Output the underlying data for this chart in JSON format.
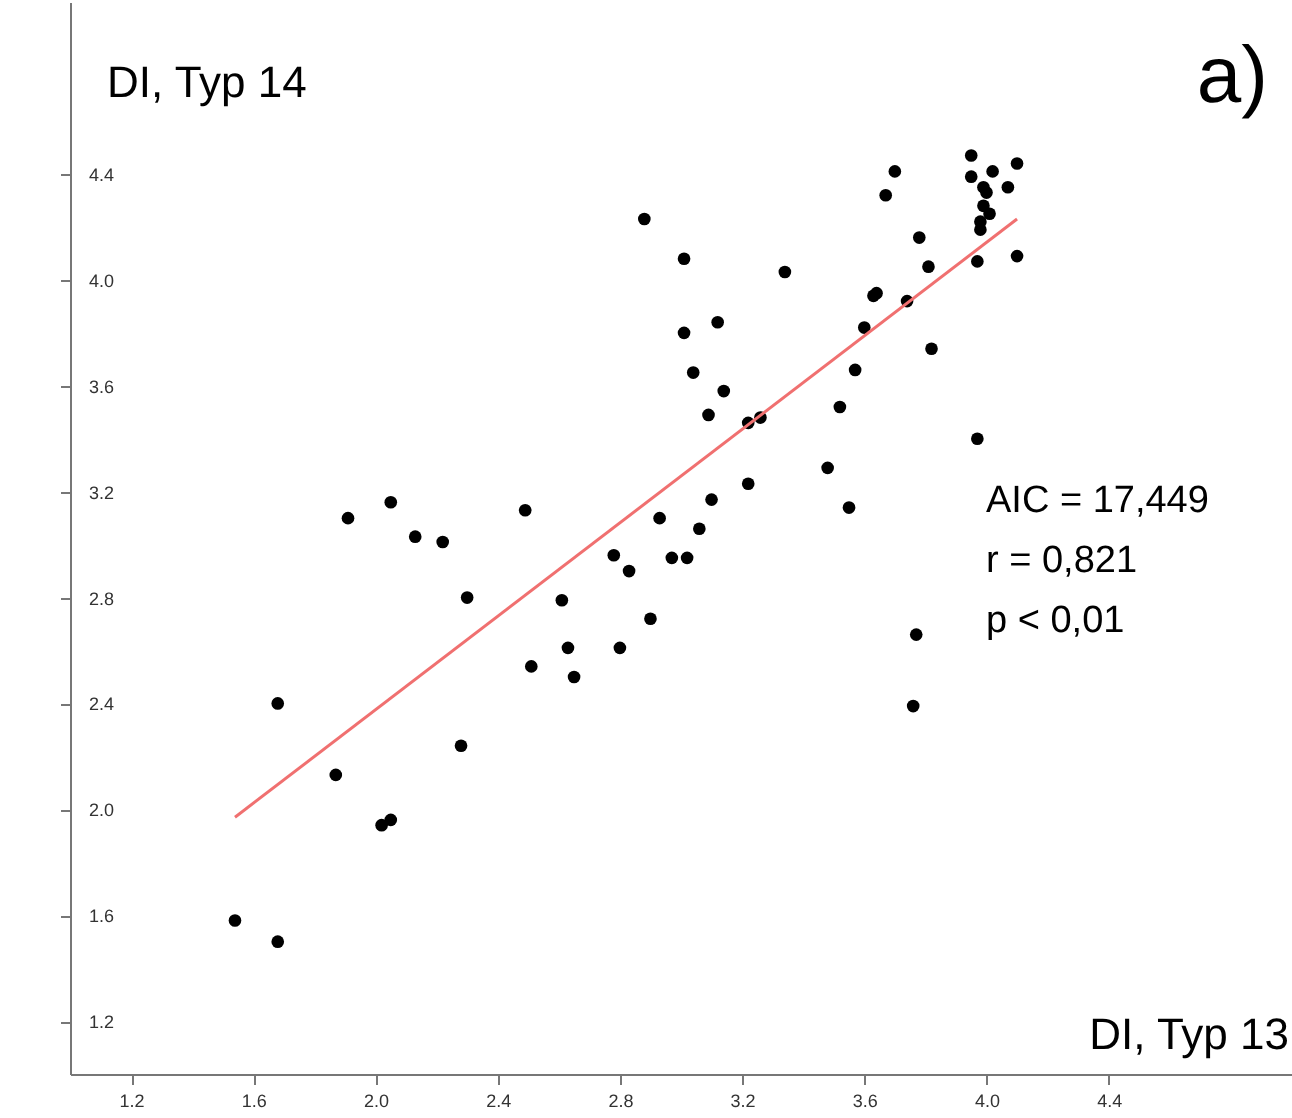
{
  "chart_data": {
    "type": "scatter",
    "xlabel": "DI, Typ 13",
    "ylabel": "DI, Typ 14",
    "annotations": [
      "a)",
      "AIC = 17,449",
      "r =  0,821",
      "p < 0,01"
    ],
    "xlim": [
      1.0,
      5.0
    ],
    "ylim": [
      1.0,
      5.05
    ],
    "xticks": [
      1.2,
      1.6,
      {
        "value": 2,
        "label": "2.0"
      },
      2.4,
      2.8,
      3.2,
      3.6,
      {
        "value": 4,
        "label": "4.0"
      },
      4.4
    ],
    "yticks": [
      1.2,
      1.6,
      {
        "value": 2,
        "label": "2.0"
      },
      2.4,
      2.8,
      3.2,
      3.6,
      {
        "value": 4,
        "label": "4.0"
      },
      4.4
    ],
    "grid": false,
    "series": [
      {
        "marker": "circle",
        "color": "#000000",
        "x": [
          1.91,
          2.05,
          2.13,
          2.22,
          2.49,
          2.3,
          1.68,
          1.87,
          2.28,
          2.02,
          2.05,
          1.54,
          1.68,
          2.61,
          2.63,
          2.51,
          2.65,
          2.8,
          2.78,
          2.83,
          2.9,
          2.93,
          2.97,
          2.88,
          3.01,
          3.34,
          3.01,
          3.12,
          3.04,
          3.14,
          3.09,
          3.22,
          3.26,
          3.22,
          3.1,
          3.06,
          3.02,
          3.48,
          3.55,
          3.52,
          3.57,
          3.6,
          3.63,
          3.64,
          3.74,
          3.82,
          3.81,
          3.78,
          3.67,
          3.7,
          3.97,
          3.97,
          3.77,
          3.76,
          3.95,
          3.95,
          4.02,
          4.1,
          4.07,
          3.99,
          4.0,
          3.99,
          4.01,
          3.98,
          3.98,
          4.1
        ],
        "values": [
          3.1,
          3.16,
          3.03,
          3.01,
          3.13,
          2.8,
          2.4,
          2.13,
          2.24,
          1.94,
          1.96,
          1.58,
          1.5,
          2.79,
          2.61,
          2.54,
          2.5,
          2.61,
          2.96,
          2.9,
          2.72,
          3.1,
          2.95,
          4.23,
          4.08,
          4.03,
          3.8,
          3.84,
          3.65,
          3.58,
          3.49,
          3.46,
          3.48,
          3.23,
          3.17,
          3.06,
          2.95,
          3.29,
          3.14,
          3.52,
          3.66,
          3.82,
          3.94,
          3.95,
          3.92,
          3.74,
          4.05,
          4.16,
          4.32,
          4.41,
          4.07,
          3.4,
          2.66,
          2.39,
          4.47,
          4.39,
          4.41,
          4.44,
          4.35,
          4.35,
          4.33,
          4.28,
          4.25,
          4.22,
          4.19,
          4.09
        ]
      },
      {
        "type": "line",
        "color": "#f07070",
        "x": [
          1.54,
          4.1
        ],
        "values": [
          1.97,
          4.23
        ]
      }
    ]
  }
}
